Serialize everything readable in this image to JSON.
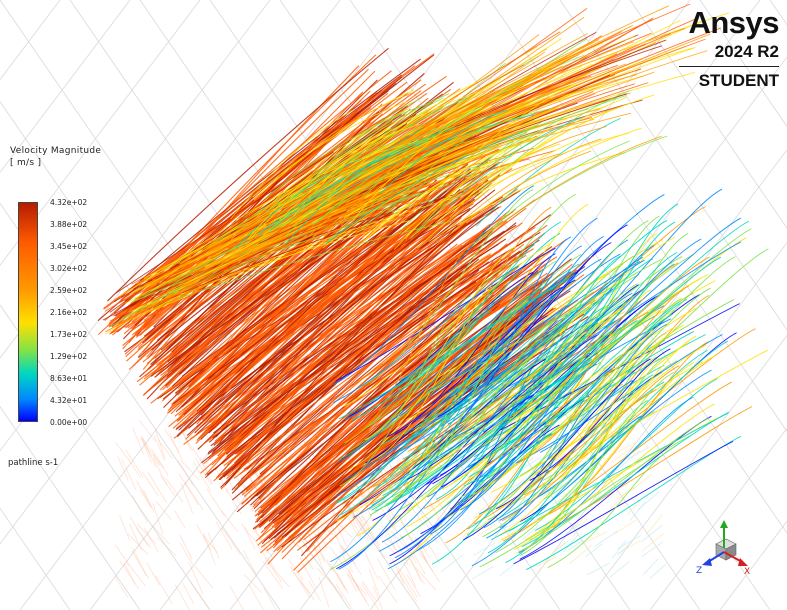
{
  "branding": {
    "name": "Ansys",
    "version": "2024 R2",
    "edition": "STUDENT"
  },
  "legend": {
    "title_line1": "Velocity Magnitude",
    "title_line2": "[ m/s ]",
    "ticks": [
      "4.32e+02",
      "3.88e+02",
      "3.45e+02",
      "3.02e+02",
      "2.59e+02",
      "2.16e+02",
      "1.73e+02",
      "1.29e+02",
      "8.63e+01",
      "4.32e+01",
      "0.00e+00"
    ],
    "colors": [
      "#b51c00",
      "#ff5a00",
      "#ff9a00",
      "#ffe000",
      "#7ee24a",
      "#00d8c0",
      "#0088ff",
      "#0000ff"
    ]
  },
  "object_label": "pathline s-1",
  "triad": {
    "x_label": "X",
    "y_label": "Y",
    "z_label": "Z",
    "x_color": "#d42020",
    "y_color": "#22aa22",
    "z_color": "#2244dd"
  }
}
